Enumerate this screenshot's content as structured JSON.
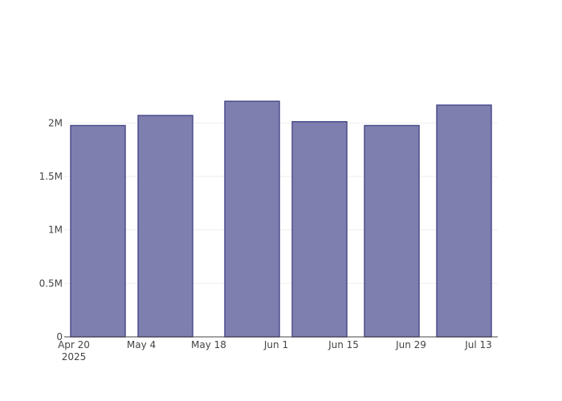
{
  "chart_data": {
    "type": "bar",
    "title": "",
    "xlabel": "",
    "ylabel": "",
    "x": [
      "2025-04-25",
      "2025-05-09",
      "2025-05-27",
      "2025-06-10",
      "2025-06-25",
      "2025-07-10"
    ],
    "values": [
      1976000,
      2070000,
      2203000,
      2012000,
      1976000,
      2167000
    ],
    "xlim": [
      "2025-04-18",
      "2025-07-17"
    ],
    "ylim": [
      0,
      2400000
    ],
    "y_ticks": [
      0,
      500000,
      1000000,
      1500000,
      2000000
    ],
    "y_tick_labels": [
      "0",
      "0.5M",
      "1M",
      "1.5M",
      "2M"
    ],
    "x_ticks": [
      "2025-04-20",
      "2025-05-04",
      "2025-05-18",
      "2025-06-01",
      "2025-06-15",
      "2025-06-29",
      "2025-07-13"
    ],
    "x_tick_labels": [
      "Apr 20",
      "May 4",
      "May 18",
      "Jun 1",
      "Jun 15",
      "Jun 29",
      "Jul 13"
    ],
    "x_tick_sublabel": "2025",
    "bar_width_days": 11.33,
    "grid": true,
    "colors": {
      "bar_fill": "#7f7faf",
      "bar_line": "#4b4b8c",
      "grid": "#eeeeee"
    }
  }
}
